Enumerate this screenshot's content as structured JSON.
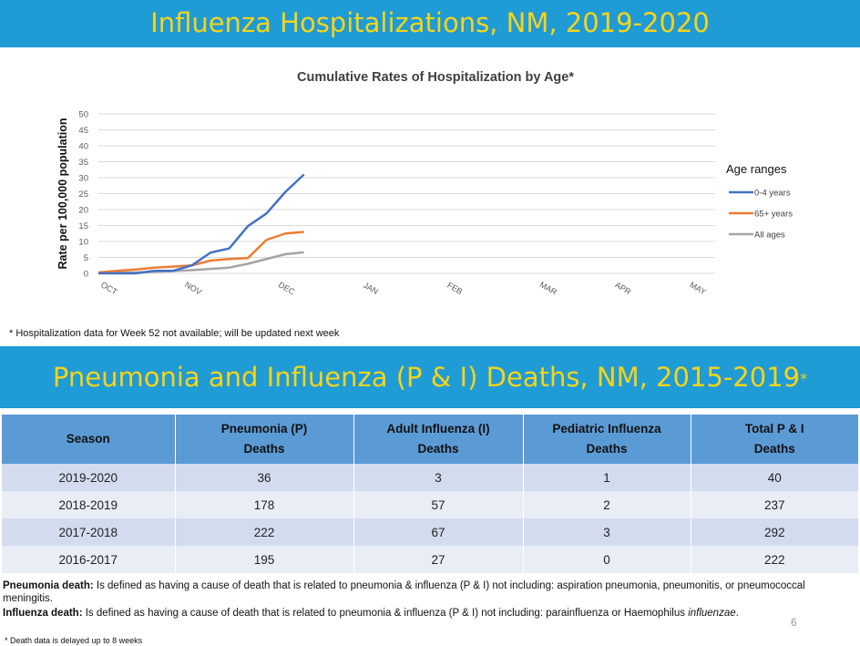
{
  "banner_top": {
    "title": "Influenza Hospitalizations, NM, 2019-2020"
  },
  "chart_data": {
    "type": "line",
    "title": "Cumulative Rates of Hospitalization by Age*",
    "ylabel": "Rate per 100,000 population",
    "xlabel": "",
    "ylim": [
      0,
      50
    ],
    "yticks": [
      0,
      5,
      10,
      15,
      20,
      25,
      30,
      35,
      40,
      45,
      50
    ],
    "grid": true,
    "x_weeks": [
      0,
      1,
      2,
      3,
      4,
      5,
      6,
      7,
      8,
      9,
      10,
      11,
      12
    ],
    "month_labels": [
      "OCT",
      "NOV",
      "DEC",
      "JAN",
      "FEB",
      "MAR",
      "APR",
      "MAY"
    ],
    "month_positions": [
      0.5,
      5,
      10,
      14.5,
      19,
      24,
      28,
      32
    ],
    "x_range": [
      0,
      33
    ],
    "legend_title": "Age ranges",
    "legend_position": "right",
    "series": [
      {
        "name": "0-4 years",
        "color": "#4472c4",
        "values": [
          0,
          0,
          0,
          0.8,
          0.8,
          2.5,
          6.5,
          7.8,
          14.8,
          18.8,
          25.5,
          31
        ]
      },
      {
        "name": "65+ years",
        "color": "#ed7d31",
        "values": [
          0.3,
          0.8,
          1.2,
          1.8,
          2.1,
          2.5,
          4,
          4.5,
          4.8,
          10.5,
          12.5,
          13
        ]
      },
      {
        "name": "All ages",
        "color": "#a5a5a5",
        "values": [
          0.1,
          0.2,
          0.3,
          0.5,
          0.7,
          1,
          1.4,
          1.8,
          3,
          4.5,
          6,
          6.6
        ]
      }
    ]
  },
  "hosp_footnote": "* Hospitalization data for Week 52 not available; will be updated next week",
  "banner_bottom": {
    "title": "Pneumonia and Influenza (P & I) Deaths, NM, 2015-2019",
    "star": "*"
  },
  "table": {
    "headers": [
      {
        "line1": "Season",
        "line2": ""
      },
      {
        "line1": "Pneumonia (P)",
        "line2": "Deaths"
      },
      {
        "line1": "Adult Influenza (I)",
        "line2": "Deaths"
      },
      {
        "line1": "Pediatric Influenza",
        "line2": "Deaths"
      },
      {
        "line1": "Total P & I",
        "line2": "Deaths"
      }
    ],
    "rows": [
      [
        "2019-2020",
        "36",
        "3",
        "1",
        "40"
      ],
      [
        "2018-2019",
        "178",
        "57",
        "2",
        "237"
      ],
      [
        "2017-2018",
        "222",
        "67",
        "3",
        "292"
      ],
      [
        "2016-2017",
        "195",
        "27",
        "0",
        "222"
      ]
    ]
  },
  "definitions": {
    "pneumonia_label": "Pneumonia death:",
    "pneumonia_text": " Is defined as having a cause of death that is related to pneumonia & influenza (P & I) not including: aspiration pneumonia, pneumonitis,  or pneumococcal meningitis.",
    "influenza_label": "Influenza death:",
    "influenza_text": " Is defined as having a cause of death that is related to pneumonia & influenza (P & I) not including: parainfluenza or Haemophilus ",
    "influenza_italic": "influenzae",
    "influenza_end": "."
  },
  "page_number": "6",
  "death_footnote": "* Death data is delayed up to 8 weeks"
}
